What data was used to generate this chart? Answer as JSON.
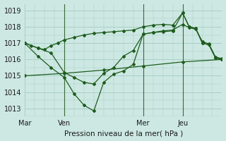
{
  "background_color": "#cde8e2",
  "grid_color": "#a8cfc7",
  "line_color": "#1e5c1e",
  "title": "Pression niveau de la mer( hPa )",
  "xlim": [
    0,
    120
  ],
  "x_ticks": [
    0,
    24,
    72,
    96,
    120
  ],
  "x_tick_labels": [
    "Mar",
    "Ven",
    "Mer",
    "Jeu",
    ""
  ],
  "ylim": [
    1012.5,
    1019.4
  ],
  "yticks": [
    1013,
    1014,
    1015,
    1016,
    1017,
    1018,
    1019
  ],
  "vlines": [
    24,
    72,
    96
  ],
  "series": [
    {
      "x": [
        0,
        4,
        8,
        12,
        16,
        20,
        24,
        30,
        36,
        42,
        48,
        54,
        60,
        66,
        72,
        78,
        84,
        90,
        96,
        100,
        104,
        108,
        112,
        116,
        120
      ],
      "y": [
        1017.0,
        1016.85,
        1016.7,
        1016.6,
        1016.85,
        1017.0,
        1017.2,
        1017.35,
        1017.5,
        1017.6,
        1017.65,
        1017.7,
        1017.75,
        1017.8,
        1018.0,
        1018.1,
        1018.15,
        1018.1,
        1018.85,
        1018.0,
        1017.9,
        1017.0,
        1016.9,
        1016.1,
        1016.0
      ]
    },
    {
      "x": [
        0,
        8,
        16,
        24,
        30,
        36,
        42,
        48,
        54,
        60,
        66,
        72,
        78,
        84,
        90,
        96,
        100,
        104,
        108,
        112,
        116,
        120
      ],
      "y": [
        1017.0,
        1016.2,
        1015.5,
        1014.9,
        1013.9,
        1013.2,
        1012.85,
        1014.6,
        1015.1,
        1015.3,
        1015.7,
        1017.55,
        1017.65,
        1017.7,
        1017.75,
        1018.85,
        1018.0,
        1017.9,
        1017.0,
        1016.9,
        1016.1,
        1016.0
      ]
    },
    {
      "x": [
        0,
        8,
        16,
        24,
        30,
        36,
        42,
        48,
        54,
        60,
        66,
        72,
        78,
        84,
        90,
        96,
        100,
        104,
        108,
        112,
        116,
        120
      ],
      "y": [
        1017.0,
        1016.7,
        1016.4,
        1015.2,
        1014.9,
        1014.6,
        1014.5,
        1015.15,
        1015.5,
        1016.2,
        1016.55,
        1017.55,
        1017.65,
        1017.75,
        1017.8,
        1018.15,
        1017.95,
        1017.85,
        1017.1,
        1016.95,
        1016.15,
        1016.05
      ]
    },
    {
      "x": [
        0,
        24,
        48,
        72,
        96,
        120
      ],
      "y": [
        1015.0,
        1015.15,
        1015.35,
        1015.6,
        1015.85,
        1016.0
      ]
    }
  ]
}
